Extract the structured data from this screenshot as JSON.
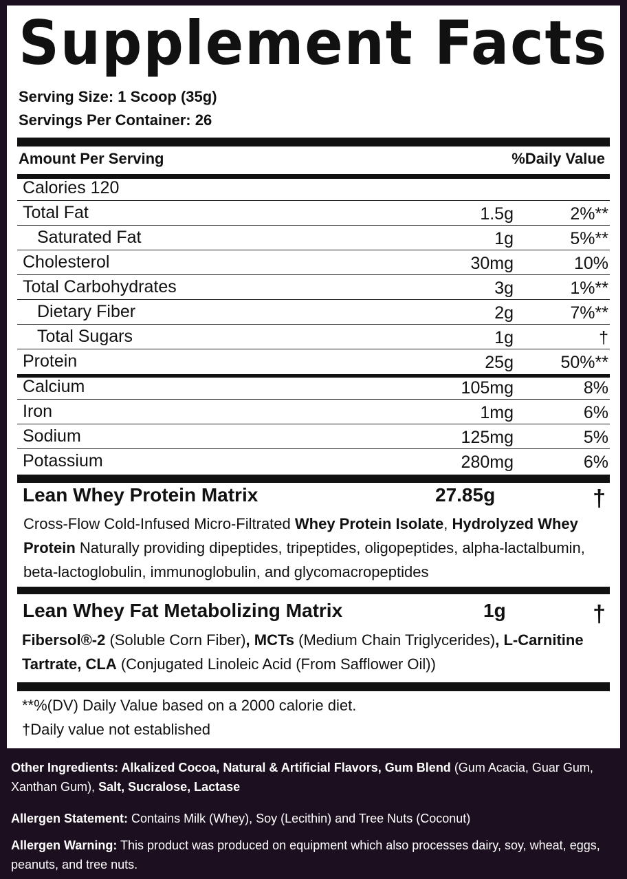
{
  "title": "Supplement Facts",
  "serving_size": "Serving Size: 1 Scoop (35g)",
  "servings_per_container": "Servings Per Container: 26",
  "header": {
    "left": "Amount Per Serving",
    "right": "%Daily Value"
  },
  "calories": "Calories 120",
  "nutrients": [
    {
      "name": "Total Fat",
      "amount": "1.5g",
      "dv": "2%**"
    },
    {
      "name": "Saturated Fat",
      "amount": "1g",
      "dv": "5%**"
    },
    {
      "name": "Cholesterol",
      "amount": "30mg",
      "dv": "10%"
    },
    {
      "name": "Total Carbohydrates",
      "amount": "3g",
      "dv": "1%**"
    },
    {
      "name": "Dietary Fiber",
      "amount": "2g",
      "dv": "7%**"
    },
    {
      "name": "Total Sugars",
      "amount": "1g",
      "dv": "†"
    },
    {
      "name": "Protein",
      "amount": "25g",
      "dv": "50%**"
    },
    {
      "name": "Calcium",
      "amount": "105mg",
      "dv": "8%"
    },
    {
      "name": "Iron",
      "amount": "1mg",
      "dv": "6%"
    },
    {
      "name": "Sodium",
      "amount": "125mg",
      "dv": "5%"
    },
    {
      "name": "Potassium",
      "amount": "280mg",
      "dv": "6%"
    }
  ],
  "blend1": {
    "name": "Lean Whey Protein Matrix",
    "amount": "27.85g",
    "dv": "†",
    "t1": "Cross-Flow Cold-Infused Micro-Filtrated ",
    "b1": "Whey Protein Isolate",
    "t2": ", ",
    "b2": "Hydrolyzed Whey Protein",
    "t3": " Naturally providing dipeptides, tripeptides, oligopeptides, alpha-lactalbumin, beta-lactoglobulin, immunoglobulin, and glycomacropeptides"
  },
  "blend2": {
    "name": "Lean Whey Fat Metabolizing Matrix",
    "amount": "1g",
    "dv": "†",
    "b1": "Fibersol®-2",
    "t1": " (Soluble Corn Fiber)",
    "b2": ", MCTs",
    "t2": " (Medium Chain Triglycerides)",
    "b3": ", L-Carnitine Tartrate, CLA",
    "t3": " (Conjugated Linoleic Acid (From Safflower Oil))"
  },
  "footnote1": "**%(DV) Daily Value based on a 2000 calorie diet.",
  "footnote2": "†Daily value not established",
  "other_ingredients": {
    "label": "Other Ingredients: ",
    "b1": "Alkalized Cocoa, Natural & Artificial Flavors, Gum Blend",
    "t1": " (Gum Acacia, Guar Gum, Xanthan Gum), ",
    "b2": "Salt, Sucralose, Lactase"
  },
  "allergen_statement": {
    "label": "Allergen Statement:",
    "text": " Contains Milk (Whey), Soy (Lecithin) and Tree Nuts (Coconut)"
  },
  "allergen_warning": {
    "label": "Allergen Warning:",
    "text": " This product was produced on equipment which also processes dairy, soy, wheat, eggs, peanuts, and tree nuts."
  }
}
